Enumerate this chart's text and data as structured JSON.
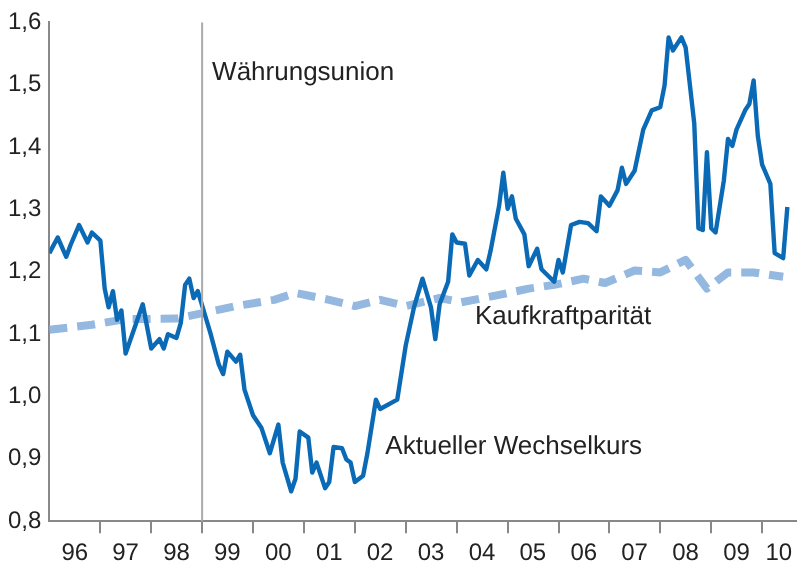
{
  "chart_data": {
    "type": "line",
    "xlim": [
      "1996-01-01",
      "2010-09-01"
    ],
    "ylim": [
      0.8,
      1.6
    ],
    "xticks": [
      {
        "value": "1996-07-01",
        "label": "96"
      },
      {
        "value": "1997-01-01",
        "label": null
      },
      {
        "value": "1997-07-01",
        "label": "97"
      },
      {
        "value": "1998-01-01",
        "label": null
      },
      {
        "value": "1998-07-01",
        "label": "98"
      },
      {
        "value": "1999-01-01",
        "label": null
      },
      {
        "value": "1999-07-01",
        "label": "99"
      },
      {
        "value": "2000-01-01",
        "label": null
      },
      {
        "value": "2000-07-01",
        "label": "00"
      },
      {
        "value": "2001-01-01",
        "label": null
      },
      {
        "value": "2001-07-01",
        "label": "01"
      },
      {
        "value": "2002-01-01",
        "label": null
      },
      {
        "value": "2002-07-01",
        "label": "02"
      },
      {
        "value": "2003-01-01",
        "label": null
      },
      {
        "value": "2003-07-01",
        "label": "03"
      },
      {
        "value": "2004-01-01",
        "label": null
      },
      {
        "value": "2004-07-01",
        "label": "04"
      },
      {
        "value": "2005-01-01",
        "label": null
      },
      {
        "value": "2005-07-01",
        "label": "05"
      },
      {
        "value": "2006-01-01",
        "label": null
      },
      {
        "value": "2006-07-01",
        "label": "06"
      },
      {
        "value": "2007-01-01",
        "label": null
      },
      {
        "value": "2007-07-01",
        "label": "07"
      },
      {
        "value": "2008-01-01",
        "label": null
      },
      {
        "value": "2008-07-01",
        "label": "08"
      },
      {
        "value": "2009-01-01",
        "label": null
      },
      {
        "value": "2009-07-01",
        "label": "09"
      },
      {
        "value": "2010-01-01",
        "label": null
      },
      {
        "value": "2010-05-01",
        "label": "10"
      }
    ],
    "yticks": [
      {
        "value": 0.8,
        "label": "0,8"
      },
      {
        "value": 0.9,
        "label": "0,9"
      },
      {
        "value": 1.0,
        "label": "1,0"
      },
      {
        "value": 1.1,
        "label": "1,1"
      },
      {
        "value": 1.2,
        "label": "1,2"
      },
      {
        "value": 1.3,
        "label": "1,3"
      },
      {
        "value": 1.4,
        "label": "1,4"
      },
      {
        "value": 1.5,
        "label": "1,5"
      },
      {
        "value": 1.6,
        "label": "1,6"
      }
    ],
    "grid": false,
    "legend": false,
    "ref_lines": [
      {
        "axis": "x",
        "value": "1999-01-01",
        "label": "Währungsunion",
        "color": "#aaaaaa"
      }
    ],
    "series": [
      {
        "name": "Aktueller Wechselkurs",
        "color": "#0b6ab5",
        "line_style": "solid",
        "x": [
          "1996-01",
          "1996-03",
          "1996-05",
          "1996-06",
          "1996-08",
          "1996-10",
          "1996-11",
          "1997-01",
          "1997-02",
          "1997-03",
          "1997-04",
          "1997-05",
          "1997-06",
          "1997-07",
          "1997-11",
          "1998-01",
          "1998-03",
          "1998-04",
          "1998-05",
          "1998-07",
          "1998-08",
          "1998-09",
          "1998-10",
          "1998-11",
          "1998-12",
          "1999-03",
          "1999-05",
          "1999-06",
          "1999-07",
          "1999-09",
          "1999-10",
          "1999-11",
          "2000-01",
          "2000-03",
          "2000-05",
          "2000-07",
          "2000-08",
          "2000-10",
          "2000-11",
          "2000-12",
          "2001-02",
          "2001-03",
          "2001-04",
          "2001-06",
          "2001-07",
          "2001-08",
          "2001-10",
          "2001-11",
          "2001-12",
          "2002-01",
          "2002-03",
          "2002-04",
          "2002-06",
          "2002-07",
          "2002-11",
          "2003-01",
          "2003-03",
          "2003-05",
          "2003-07",
          "2003-08",
          "2003-09",
          "2003-11",
          "2003-12",
          "2004-01",
          "2004-03",
          "2004-04",
          "2004-06",
          "2004-08",
          "2004-09",
          "2004-11",
          "2004-12",
          "2005-01",
          "2005-02",
          "2005-03",
          "2005-05",
          "2005-06",
          "2005-08",
          "2005-09",
          "2005-12",
          "2006-01",
          "2006-02",
          "2006-04",
          "2006-06",
          "2006-08",
          "2006-10",
          "2006-11",
          "2007-01",
          "2007-03",
          "2007-04",
          "2007-05",
          "2007-07",
          "2007-09",
          "2007-11",
          "2008-01",
          "2008-02",
          "2008-03",
          "2008-04",
          "2008-06",
          "2008-07",
          "2008-09",
          "2008-10",
          "2008-11",
          "2008-12",
          "2009-01",
          "2009-02",
          "2009-04",
          "2009-05",
          "2009-06",
          "2009-07",
          "2009-09",
          "2009-10",
          "2009-11",
          "2009-12",
          "2010-01",
          "2010-03",
          "2010-04",
          "2010-06",
          "2010-07"
        ],
        "values": [
          1.23,
          1.255,
          1.224,
          1.243,
          1.275,
          1.247,
          1.263,
          1.25,
          1.173,
          1.143,
          1.169,
          1.123,
          1.138,
          1.069,
          1.148,
          1.077,
          1.092,
          1.077,
          1.1,
          1.094,
          1.118,
          1.179,
          1.189,
          1.158,
          1.169,
          1.102,
          1.051,
          1.036,
          1.072,
          1.056,
          1.067,
          1.011,
          0.97,
          0.95,
          0.909,
          0.955,
          0.894,
          0.848,
          0.868,
          0.944,
          0.934,
          0.878,
          0.894,
          0.853,
          0.863,
          0.919,
          0.917,
          0.899,
          0.894,
          0.863,
          0.873,
          0.909,
          0.995,
          0.98,
          0.995,
          1.082,
          1.143,
          1.189,
          1.143,
          1.092,
          1.148,
          1.184,
          1.26,
          1.247,
          1.245,
          1.194,
          1.219,
          1.204,
          1.234,
          1.306,
          1.359,
          1.301,
          1.321,
          1.285,
          1.26,
          1.209,
          1.237,
          1.204,
          1.184,
          1.219,
          1.199,
          1.275,
          1.28,
          1.278,
          1.265,
          1.321,
          1.306,
          1.331,
          1.367,
          1.341,
          1.362,
          1.428,
          1.459,
          1.464,
          1.499,
          1.576,
          1.555,
          1.576,
          1.56,
          1.438,
          1.27,
          1.267,
          1.392,
          1.27,
          1.263,
          1.346,
          1.413,
          1.402,
          1.428,
          1.459,
          1.469,
          1.507,
          1.418,
          1.372,
          1.341,
          1.23,
          1.222,
          1.304
        ]
      },
      {
        "name": "Kaufkraftparität",
        "color": "#94b8e0",
        "line_style": "dashed",
        "x": [
          "1996-01",
          "1996-11",
          "1997-07",
          "1998-07",
          "1999-02",
          "1999-09",
          "2000-06",
          "2000-11",
          "2001-07",
          "2002-01",
          "2002-07",
          "2003-01",
          "2003-09",
          "2004-02",
          "2004-11",
          "2005-06",
          "2005-12",
          "2006-07",
          "2006-12",
          "2007-07",
          "2008-01",
          "2008-07",
          "2008-12",
          "2009-05",
          "2009-11",
          "2010-06"
        ],
        "values": [
          1.107,
          1.115,
          1.124,
          1.125,
          1.135,
          1.145,
          1.155,
          1.166,
          1.155,
          1.145,
          1.155,
          1.145,
          1.158,
          1.151,
          1.163,
          1.173,
          1.179,
          1.189,
          1.182,
          1.202,
          1.199,
          1.219,
          1.173,
          1.199,
          1.199,
          1.192
        ]
      }
    ]
  }
}
